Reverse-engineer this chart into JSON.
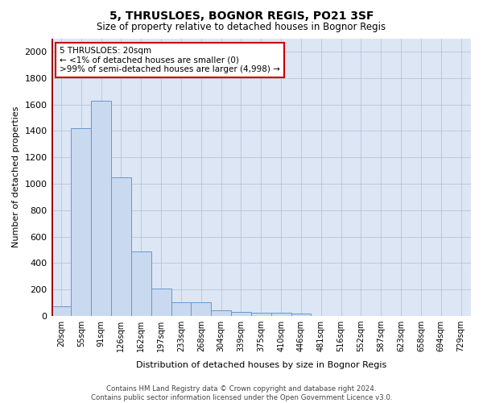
{
  "title": "5, THRUSLOES, BOGNOR REGIS, PO21 3SF",
  "subtitle": "Size of property relative to detached houses in Bognor Regis",
  "xlabel": "Distribution of detached houses by size in Bognor Regis",
  "ylabel": "Number of detached properties",
  "footer_line1": "Contains HM Land Registry data © Crown copyright and database right 2024.",
  "footer_line2": "Contains public sector information licensed under the Open Government Licence v3.0.",
  "annotation_line1": "5 THRUSLOES: 20sqm",
  "annotation_line2": "← <1% of detached houses are smaller (0)",
  "annotation_line3": ">99% of semi-detached houses are larger (4,998) →",
  "bar_color": "#c9d9f0",
  "bar_edge_color": "#6699cc",
  "highlight_line_color": "#990000",
  "highlight_bar_index": 0,
  "annotation_box_color": "#ffffff",
  "annotation_box_edge": "#cc0000",
  "background_color": "#dce6f5",
  "grid_color": "#b0bfd0",
  "categories": [
    "20sqm",
    "55sqm",
    "91sqm",
    "126sqm",
    "162sqm",
    "197sqm",
    "233sqm",
    "268sqm",
    "304sqm",
    "339sqm",
    "375sqm",
    "410sqm",
    "446sqm",
    "481sqm",
    "516sqm",
    "552sqm",
    "587sqm",
    "623sqm",
    "658sqm",
    "694sqm",
    "729sqm"
  ],
  "values": [
    75,
    1420,
    1630,
    1050,
    490,
    205,
    105,
    105,
    40,
    28,
    22,
    22,
    18,
    0,
    0,
    0,
    0,
    0,
    0,
    0,
    0
  ],
  "ylim": [
    0,
    2100
  ],
  "yticks": [
    0,
    200,
    400,
    600,
    800,
    1000,
    1200,
    1400,
    1600,
    1800,
    2000
  ]
}
